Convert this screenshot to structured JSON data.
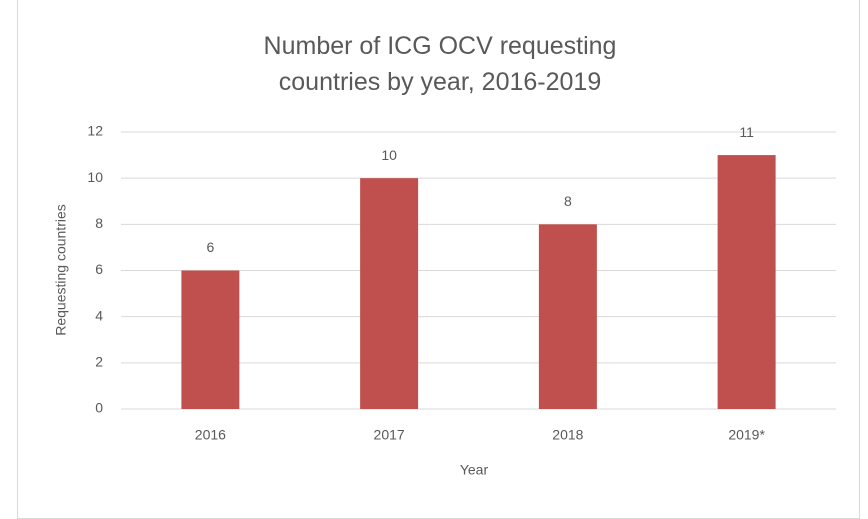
{
  "chart_data": {
    "type": "bar",
    "title": "Number of ICG OCV requesting countries by year, 2016-2019",
    "categories": [
      "2016",
      "2017",
      "2018",
      "2019*"
    ],
    "values": [
      6,
      10,
      8,
      11
    ],
    "color": "#c0504d",
    "x_label": "Year",
    "y_label": "Requesting countries",
    "ylim": [
      0,
      12
    ],
    "yticks": [
      0,
      2,
      4,
      6,
      8,
      10,
      12
    ],
    "grid": true
  }
}
